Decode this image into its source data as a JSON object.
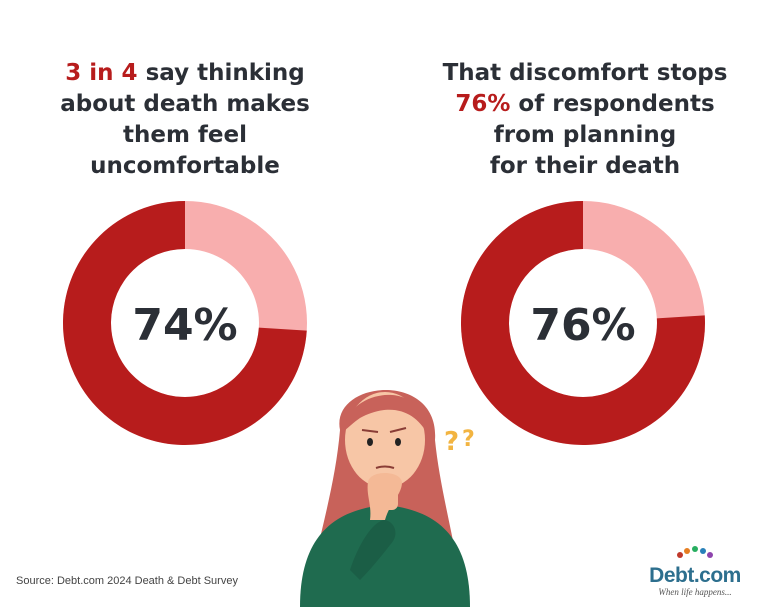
{
  "chart_data": [
    {
      "type": "pie",
      "value": 74,
      "center_label": "74%",
      "heading": {
        "line1_highlight": "3 in 4",
        "line1_rest": " say thinking",
        "line2": "about death makes",
        "line3": "them feel",
        "line4": "uncomfortable"
      }
    },
    {
      "type": "pie",
      "value": 76,
      "center_label": "76%",
      "heading": {
        "line1": "That discomfort stops",
        "line2_highlight": "76%",
        "line2_rest": " of respondents",
        "line3": "from planning",
        "line4": "for their death"
      }
    }
  ],
  "colors": {
    "filled": "#b71c1c",
    "remaining": "#f8aeae",
    "highlight_text": "#b71c1c",
    "text": "#2b2f36"
  },
  "source": "Source: Debt.com 2024 Death & Debt Survey",
  "logo": {
    "brand": "Debt.com",
    "tagline": "When life happens..."
  },
  "illustration": {
    "name": "thinking-woman",
    "decoration": "question-marks-icon"
  }
}
